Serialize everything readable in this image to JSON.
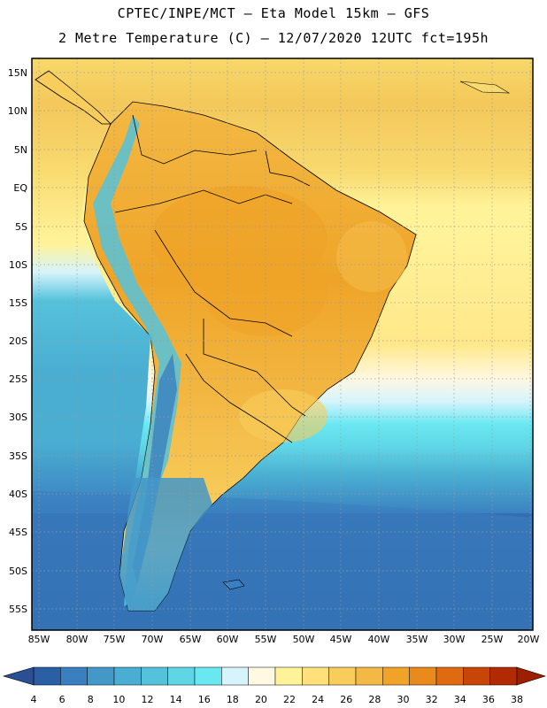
{
  "header": {
    "title_line1": "CPTEC/INPE/MCT –  Eta Model 15km – GFS",
    "title_line2": "2 Metre Temperature (C) – 12/07/2020 12UTC fct=195h"
  },
  "axes": {
    "lat_labels": [
      "15N",
      "10N",
      "5N",
      "EQ",
      "5S",
      "10S",
      "15S",
      "20S",
      "25S",
      "30S",
      "35S",
      "40S",
      "45S",
      "50S",
      "55S"
    ],
    "lon_labels": [
      "85W",
      "80W",
      "75W",
      "70W",
      "65W",
      "60W",
      "55W",
      "50W",
      "45W",
      "40W",
      "35W",
      "30W",
      "25W",
      "20W"
    ]
  },
  "colorbar": {
    "labels": [
      "4",
      "6",
      "8",
      "10",
      "12",
      "14",
      "16",
      "18",
      "20",
      "22",
      "24",
      "26",
      "28",
      "30",
      "32",
      "34",
      "36",
      "38"
    ],
    "colors": [
      "#2b5fa5",
      "#3a7fbf",
      "#4398c8",
      "#4aaed2",
      "#55c2dc",
      "#5fd6e6",
      "#6ae8f2",
      "#d5f4fc",
      "#fff8e2",
      "#fff39a",
      "#ffe07a",
      "#f8cd5c",
      "#f3b944",
      "#efa428",
      "#e88a1c",
      "#df6a10",
      "#c84508",
      "#b22a02"
    ],
    "under_color": "#2a4f95",
    "over_color": "#9e1e00"
  }
}
